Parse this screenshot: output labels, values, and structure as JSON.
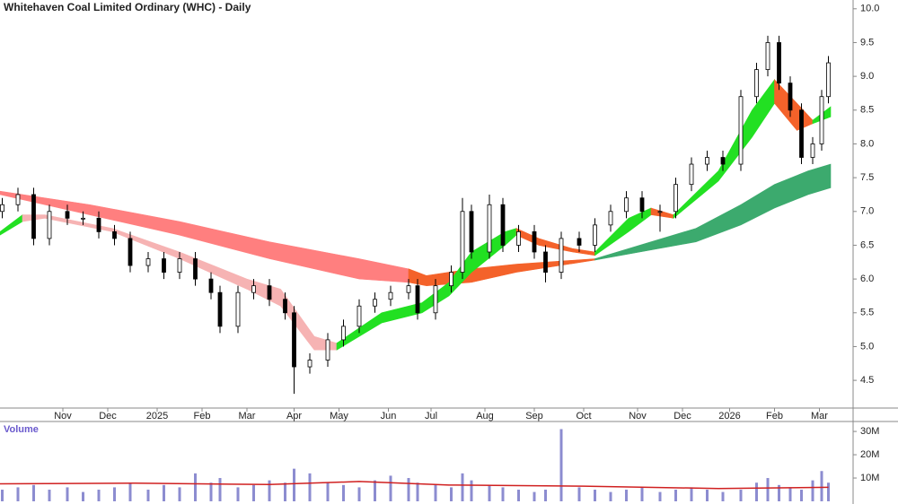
{
  "chart_data": [
    {
      "type": "candlestick",
      "title": "Whitehaven Coal Limited Ordinary (WHC) - Daily",
      "up_color": "#ffffff",
      "down_color": "#000000",
      "xlim": [
        0,
        380
      ],
      "ylim": [
        4.09,
        10.13
      ],
      "xticks": [
        {
          "value": 28,
          "label": "Nov"
        },
        {
          "value": 48,
          "label": "Dec"
        },
        {
          "value": 70,
          "label": "2025"
        },
        {
          "value": 90,
          "label": "Feb"
        },
        {
          "value": 110,
          "label": "Mar"
        },
        {
          "value": 131,
          "label": "Apr"
        },
        {
          "value": 151,
          "label": "May"
        },
        {
          "value": 173,
          "label": "Jun"
        },
        {
          "value": 192,
          "label": "Jul"
        },
        {
          "value": 216,
          "label": "Aug"
        },
        {
          "value": 238,
          "label": "Sep"
        },
        {
          "value": 260,
          "label": "Oct"
        },
        {
          "value": 284,
          "label": "Nov"
        },
        {
          "value": 304,
          "label": "Dec"
        },
        {
          "value": 325,
          "label": "2026"
        },
        {
          "value": 345,
          "label": "Feb"
        },
        {
          "value": 365,
          "label": "Mar"
        }
      ],
      "yticks": [
        4.5,
        {
          "value": 5,
          "label": "5.0"
        },
        5.5,
        {
          "value": 6,
          "label": "6.0"
        },
        6.5,
        {
          "value": 7,
          "label": "7.0"
        },
        7.5,
        {
          "value": 8,
          "label": "8.0"
        },
        8.5,
        {
          "value": 9,
          "label": "9.0"
        },
        9.5,
        {
          "value": 10,
          "label": "10.0"
        }
      ],
      "x": [
        1,
        8,
        15,
        22,
        30,
        37,
        44,
        51,
        58,
        66,
        73,
        80,
        87,
        94,
        98,
        106,
        113,
        120,
        127,
        131,
        138,
        146,
        153,
        160,
        167,
        174,
        182,
        186,
        194,
        201,
        206,
        210,
        218,
        224,
        231,
        238,
        243,
        250,
        258,
        265,
        272,
        279,
        286,
        294,
        301,
        308,
        315,
        322,
        330,
        337,
        342,
        347,
        352,
        357,
        362,
        366,
        369
      ],
      "open": [
        7.0,
        7.1,
        7.25,
        6.6,
        7.0,
        6.9,
        6.9,
        6.7,
        6.6,
        6.2,
        6.3,
        6.1,
        6.3,
        6.0,
        5.8,
        5.3,
        5.8,
        5.9,
        5.7,
        5.5,
        4.7,
        4.8,
        5.1,
        5.3,
        5.6,
        5.7,
        5.8,
        5.9,
        5.5,
        5.9,
        6.1,
        7.0,
        6.4,
        7.1,
        6.5,
        6.7,
        6.4,
        6.1,
        6.6,
        6.5,
        6.8,
        7.0,
        7.2,
        7.0,
        7.0,
        7.4,
        7.7,
        7.8,
        7.7,
        8.7,
        9.1,
        9.5,
        8.9,
        8.5,
        7.8,
        8.0,
        8.7
      ],
      "high": [
        7.2,
        7.35,
        7.35,
        7.1,
        7.1,
        7.0,
        7.0,
        6.8,
        6.7,
        6.4,
        6.4,
        6.4,
        6.4,
        6.1,
        5.9,
        5.9,
        6.0,
        6.0,
        5.8,
        5.6,
        4.9,
        5.2,
        5.4,
        5.7,
        5.8,
        5.9,
        6.0,
        6.0,
        6.0,
        6.2,
        7.2,
        7.1,
        7.25,
        7.2,
        6.8,
        6.8,
        6.5,
        6.7,
        6.7,
        6.9,
        7.1,
        7.3,
        7.3,
        7.1,
        7.5,
        7.8,
        7.9,
        7.9,
        8.8,
        9.2,
        9.6,
        9.6,
        9.0,
        8.6,
        8.1,
        8.8,
        9.3
      ],
      "low": [
        6.9,
        7.0,
        6.5,
        6.5,
        6.8,
        6.8,
        6.6,
        6.5,
        6.1,
        6.1,
        6.0,
        6.0,
        5.9,
        5.7,
        5.2,
        5.2,
        5.7,
        5.6,
        5.4,
        4.3,
        4.6,
        4.7,
        5.0,
        5.2,
        5.5,
        5.6,
        5.7,
        5.4,
        5.4,
        5.8,
        6.0,
        6.3,
        6.3,
        6.4,
        6.4,
        6.3,
        5.95,
        6.0,
        6.4,
        6.4,
        6.7,
        6.9,
        6.9,
        6.7,
        6.9,
        7.3,
        7.6,
        7.6,
        7.6,
        8.6,
        9.0,
        8.8,
        8.4,
        7.7,
        7.7,
        7.9,
        8.6
      ],
      "close": [
        7.1,
        7.25,
        6.6,
        7.0,
        6.9,
        6.9,
        6.7,
        6.6,
        6.2,
        6.3,
        6.1,
        6.3,
        6.0,
        5.8,
        5.3,
        5.8,
        5.9,
        5.7,
        5.5,
        4.7,
        4.8,
        5.1,
        5.3,
        5.6,
        5.7,
        5.8,
        5.9,
        5.5,
        5.9,
        6.1,
        7.0,
        6.4,
        7.1,
        6.5,
        6.7,
        6.4,
        6.1,
        6.6,
        6.5,
        6.8,
        7.0,
        7.2,
        7.0,
        7.0,
        7.4,
        7.7,
        7.8,
        7.7,
        8.7,
        9.1,
        9.5,
        8.9,
        8.5,
        7.8,
        8.0,
        8.7,
        9.2
      ],
      "ribbons": [
        {
          "color": "#ff7f7f",
          "x": [
            0,
            40,
            80,
            120,
            160,
            182
          ],
          "upper": [
            7.3,
            7.1,
            6.85,
            6.55,
            6.3,
            6.15
          ],
          "lower": [
            7.25,
            6.95,
            6.65,
            6.3,
            6.0,
            5.95
          ]
        },
        {
          "color": "#f4622a",
          "x": [
            182,
            190,
            210,
            230,
            265
          ],
          "upper": [
            6.15,
            6.05,
            6.15,
            6.22,
            6.3
          ],
          "lower": [
            5.95,
            5.9,
            5.95,
            6.1,
            6.28
          ]
        },
        {
          "color": "#3caa6e",
          "x": [
            265,
            285,
            310,
            330,
            345,
            360,
            370
          ],
          "upper": [
            6.3,
            6.5,
            6.75,
            7.1,
            7.4,
            7.6,
            7.7
          ],
          "lower": [
            6.28,
            6.4,
            6.55,
            6.8,
            7.05,
            7.25,
            7.35
          ]
        },
        {
          "color": "#22e022",
          "x": [
            0,
            10
          ],
          "upper": [
            6.7,
            6.95
          ],
          "lower": [
            6.65,
            6.85
          ]
        },
        {
          "color": "#f6b3b3",
          "x": [
            10,
            20,
            50,
            80,
            110,
            125,
            140,
            150
          ],
          "upper": [
            6.95,
            6.95,
            6.75,
            6.4,
            6.0,
            5.85,
            5.15,
            5.05
          ],
          "lower": [
            6.85,
            6.9,
            6.7,
            6.3,
            5.85,
            5.6,
            4.95,
            4.95
          ]
        },
        {
          "color": "#22e022",
          "x": [
            150,
            170,
            188,
            200,
            210,
            225,
            230
          ],
          "upper": [
            5.05,
            5.5,
            5.65,
            5.95,
            6.4,
            6.7,
            6.75
          ],
          "lower": [
            4.95,
            5.35,
            5.5,
            5.75,
            6.1,
            6.5,
            6.65
          ]
        },
        {
          "color": "#f4622a",
          "x": [
            230,
            240,
            255,
            265
          ],
          "upper": [
            6.75,
            6.6,
            6.45,
            6.4
          ],
          "lower": [
            6.65,
            6.5,
            6.4,
            6.35
          ]
        },
        {
          "color": "#22e022",
          "x": [
            265,
            280,
            290
          ],
          "upper": [
            6.4,
            6.9,
            7.05
          ],
          "lower": [
            6.35,
            6.7,
            6.95
          ]
        },
        {
          "color": "#f4622a",
          "x": [
            290,
            300
          ],
          "upper": [
            7.05,
            6.95
          ],
          "lower": [
            6.95,
            6.9
          ]
        },
        {
          "color": "#22e022",
          "x": [
            300,
            320,
            335,
            345
          ],
          "upper": [
            6.95,
            7.6,
            8.5,
            8.95
          ],
          "lower": [
            6.9,
            7.45,
            8.1,
            8.6
          ]
        },
        {
          "color": "#f4622a",
          "x": [
            345,
            355,
            362
          ],
          "upper": [
            8.95,
            8.6,
            8.35
          ],
          "lower": [
            8.6,
            8.2,
            8.3
          ]
        },
        {
          "color": "#22e022",
          "x": [
            362,
            370
          ],
          "upper": [
            8.35,
            8.55
          ],
          "lower": [
            8.3,
            8.4
          ]
        }
      ]
    },
    {
      "type": "bar",
      "title": "Volume",
      "color": "#8c8cd0",
      "ma_color": "#d02020",
      "xlim": [
        0,
        380
      ],
      "ylim": [
        0,
        33.5
      ],
      "yticks": [
        {
          "value": 10,
          "label": "10M"
        },
        {
          "value": 20,
          "label": "20M"
        },
        {
          "value": 30,
          "label": "30M"
        }
      ],
      "x": [
        1,
        8,
        15,
        22,
        30,
        37,
        44,
        51,
        58,
        66,
        73,
        80,
        87,
        94,
        98,
        106,
        113,
        120,
        127,
        131,
        138,
        146,
        153,
        160,
        167,
        174,
        182,
        186,
        194,
        201,
        206,
        210,
        218,
        224,
        231,
        238,
        243,
        250,
        258,
        265,
        272,
        279,
        286,
        294,
        301,
        308,
        315,
        322,
        330,
        337,
        342,
        347,
        352,
        357,
        362,
        366,
        369
      ],
      "values": [
        5,
        6,
        7,
        5,
        6,
        4,
        5,
        6,
        8,
        5,
        7,
        6,
        12,
        8,
        10,
        6,
        7,
        9,
        8,
        14,
        12,
        8,
        7,
        6,
        9,
        11,
        10,
        8,
        7,
        6,
        12,
        9,
        7,
        6,
        5,
        4,
        5,
        31,
        6,
        5,
        4,
        5,
        6,
        4,
        5,
        6,
        5,
        4,
        5,
        8,
        10,
        7,
        6,
        5,
        9,
        13,
        8
      ],
      "ma_x": [
        0,
        60,
        120,
        160,
        200,
        260,
        320,
        369
      ],
      "ma_values": [
        7.5,
        7.8,
        7.2,
        8.5,
        7,
        6.5,
        5.5,
        6
      ]
    }
  ]
}
